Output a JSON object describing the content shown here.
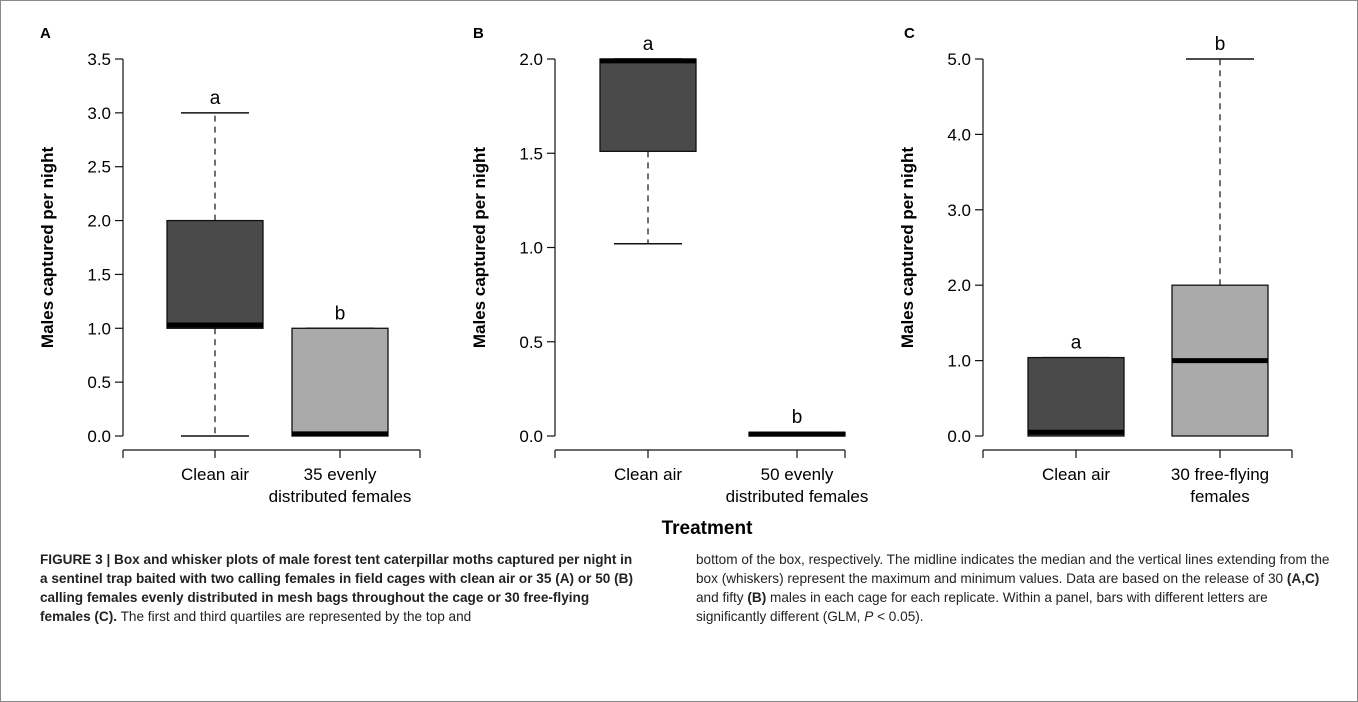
{
  "chart_data": [
    {
      "type": "box",
      "panel_label": "A",
      "ylabel": "Males captured per night",
      "ylim": [
        0,
        3.5
      ],
      "yticks": [
        "0.0",
        "0.5",
        "1.0",
        "1.5",
        "2.0",
        "2.5",
        "3.0",
        "3.5"
      ],
      "categories": [
        "Clean air",
        "35 evenly distributed females"
      ],
      "category_lines": [
        [
          "Clean air"
        ],
        [
          "35 evenly",
          "distributed females"
        ]
      ],
      "boxes": [
        {
          "min": 0,
          "q1": 1.0,
          "median": 1.03,
          "q3": 2.0,
          "max": 3.0,
          "color": "#4a4a4a",
          "letter": "a"
        },
        {
          "min": 0,
          "q1": 0.0,
          "median": 0.02,
          "q3": 1.0,
          "max": 1.0,
          "color": "#aaaaaa",
          "letter": "b"
        }
      ]
    },
    {
      "type": "box",
      "panel_label": "B",
      "ylabel": "Males captured per night",
      "ylim": [
        0,
        2.0
      ],
      "yticks": [
        "0.0",
        "0.5",
        "1.0",
        "1.5",
        "2.0"
      ],
      "categories": [
        "Clean air",
        "50 evenly distributed females"
      ],
      "category_lines": [
        [
          "Clean air"
        ],
        [
          "50 evenly",
          "distributed females"
        ]
      ],
      "boxes": [
        {
          "min": 1.02,
          "q1": 1.51,
          "median": 1.99,
          "q3": 2.0,
          "max": 2.0,
          "color": "#4a4a4a",
          "letter": "a"
        },
        {
          "min": 0,
          "q1": 0.0,
          "median": 0.01,
          "q3": 0.02,
          "max": 0.02,
          "color": "#aaaaaa",
          "letter": "b"
        }
      ]
    },
    {
      "type": "box",
      "panel_label": "C",
      "ylabel": "Males captured per night",
      "ylim": [
        0,
        5.0
      ],
      "yticks": [
        "0.0",
        "1.0",
        "2.0",
        "3.0",
        "4.0",
        "5.0"
      ],
      "categories": [
        "Clean air",
        "30 free-flying females"
      ],
      "category_lines": [
        [
          "Clean air"
        ],
        [
          "30 free-flying",
          "females"
        ]
      ],
      "boxes": [
        {
          "min": 0,
          "q1": 0.0,
          "median": 0.05,
          "q3": 1.04,
          "max": 1.04,
          "color": "#4a4a4a",
          "letter": "a"
        },
        {
          "min": 0,
          "q1": 0.0,
          "median": 1.0,
          "q3": 2.0,
          "max": 5.0,
          "color": "#aaaaaa",
          "letter": "b"
        }
      ]
    }
  ],
  "xlabel": "Treatment",
  "caption": {
    "figure_label": "FIGURE 3 | Box and whisker plots of male forest tent caterpillar moths captured per night in a sentinel trap baited with two calling females in field cages with clean air or 35 (A) or 50 (B) calling females evenly distributed in mesh bags throughout the cage or 30 free-flying females (C).",
    "text_left": "The first and third quartiles are represented by the top and",
    "text_right_1": "bottom of the box, respectively. The midline indicates the median and the vertical lines extending from the box (whiskers) represent the maximum and minimum values. Data are based on the release of 30 ",
    "bold_1": "(A,C)",
    "text_right_2": " and fifty ",
    "bold_2": "(B)",
    "text_right_3": " males in each cage for each replicate. Within a panel, bars with different letters are significantly different (GLM, ",
    "italic_p": "P",
    "text_right_4": " < 0.05)."
  }
}
